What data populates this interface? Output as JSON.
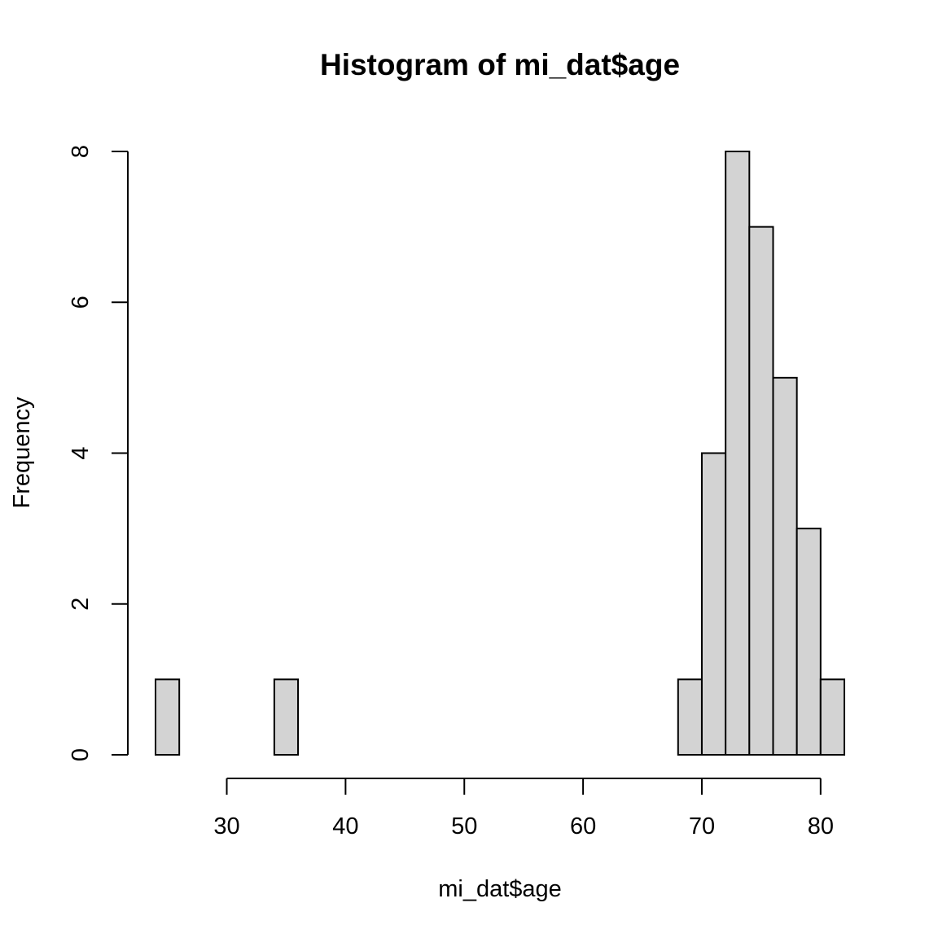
{
  "chart_data": {
    "type": "bar",
    "subtype": "histogram",
    "title": "Histogram of mi_dat$age",
    "xlabel": "mi_dat$age",
    "ylabel": "Frequency",
    "bin_width": 2,
    "bins": [
      {
        "from": 24,
        "to": 26,
        "count": 1
      },
      {
        "from": 26,
        "to": 28,
        "count": 0
      },
      {
        "from": 28,
        "to": 30,
        "count": 0
      },
      {
        "from": 30,
        "to": 32,
        "count": 0
      },
      {
        "from": 32,
        "to": 34,
        "count": 0
      },
      {
        "from": 34,
        "to": 36,
        "count": 1
      },
      {
        "from": 36,
        "to": 38,
        "count": 0
      },
      {
        "from": 38,
        "to": 40,
        "count": 0
      },
      {
        "from": 40,
        "to": 42,
        "count": 0
      },
      {
        "from": 42,
        "to": 44,
        "count": 0
      },
      {
        "from": 44,
        "to": 46,
        "count": 0
      },
      {
        "from": 46,
        "to": 48,
        "count": 0
      },
      {
        "from": 48,
        "to": 50,
        "count": 0
      },
      {
        "from": 50,
        "to": 52,
        "count": 0
      },
      {
        "from": 52,
        "to": 54,
        "count": 0
      },
      {
        "from": 54,
        "to": 56,
        "count": 0
      },
      {
        "from": 56,
        "to": 58,
        "count": 0
      },
      {
        "from": 58,
        "to": 60,
        "count": 0
      },
      {
        "from": 60,
        "to": 62,
        "count": 0
      },
      {
        "from": 62,
        "to": 64,
        "count": 0
      },
      {
        "from": 64,
        "to": 66,
        "count": 0
      },
      {
        "from": 66,
        "to": 68,
        "count": 0
      },
      {
        "from": 68,
        "to": 70,
        "count": 1
      },
      {
        "from": 70,
        "to": 72,
        "count": 4
      },
      {
        "from": 72,
        "to": 74,
        "count": 8
      },
      {
        "from": 74,
        "to": 76,
        "count": 7
      },
      {
        "from": 76,
        "to": 78,
        "count": 5
      },
      {
        "from": 78,
        "to": 80,
        "count": 3
      },
      {
        "from": 80,
        "to": 82,
        "count": 1
      }
    ],
    "xticks": [
      30,
      40,
      50,
      60,
      70,
      80
    ],
    "yticks": [
      0,
      2,
      4,
      6,
      8
    ],
    "xlim": [
      24,
      82
    ],
    "ylim": [
      0,
      8
    ],
    "grid": false,
    "bar_fill": "#d3d3d3",
    "bar_stroke": "#000000"
  }
}
